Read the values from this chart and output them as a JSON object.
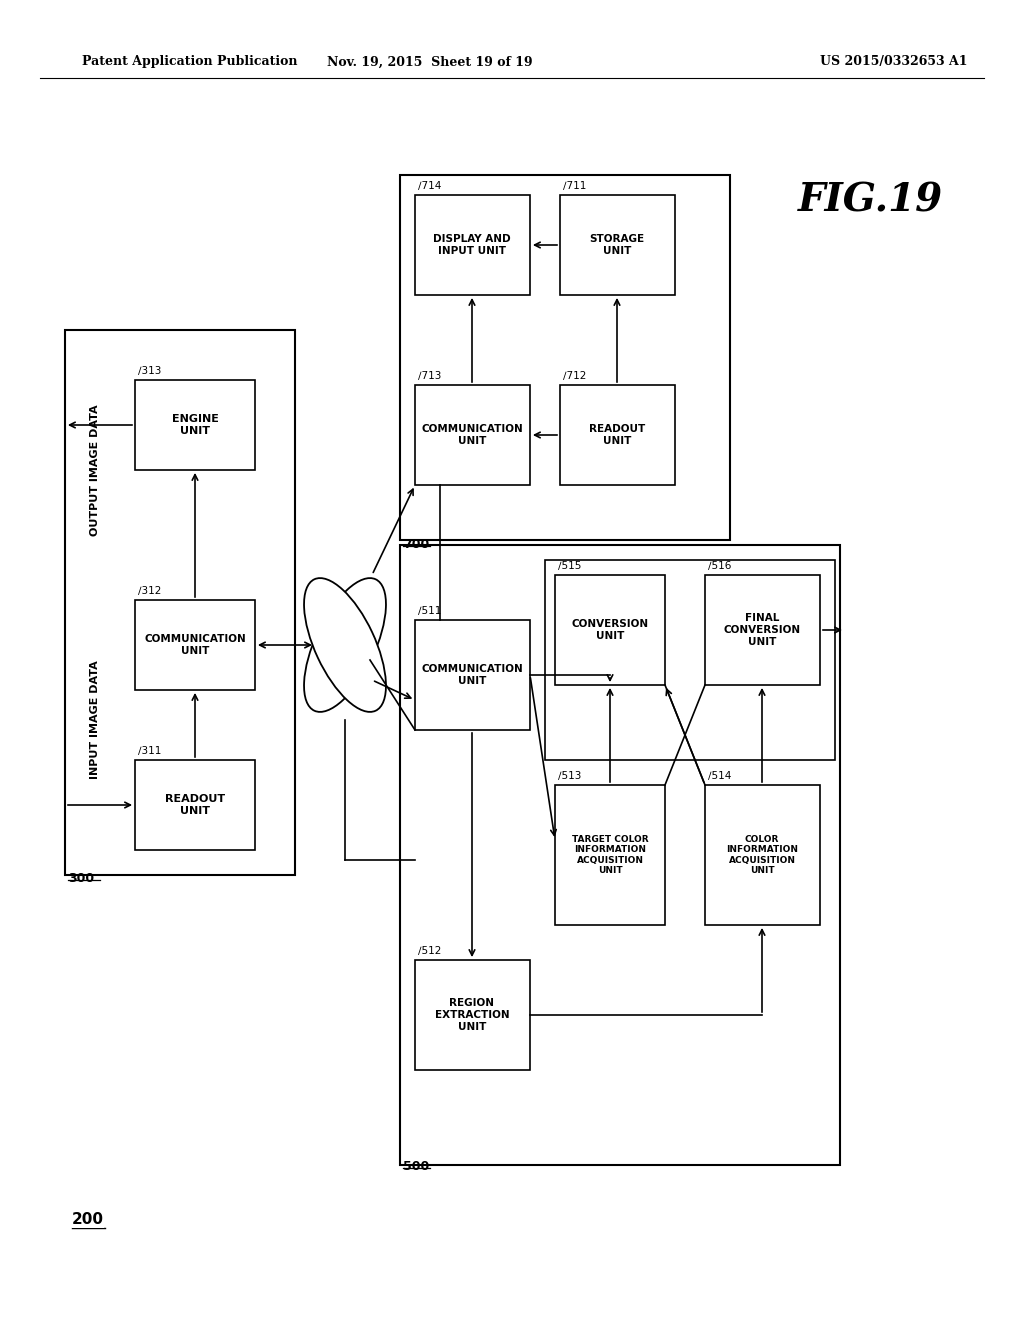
{
  "bg_color": "#ffffff",
  "header_left": "Patent Application Publication",
  "header_mid": "Nov. 19, 2015  Sheet 19 of 19",
  "header_right": "US 2015/0332653 A1",
  "fig_label": "FIG.19",
  "system_label": "200"
}
